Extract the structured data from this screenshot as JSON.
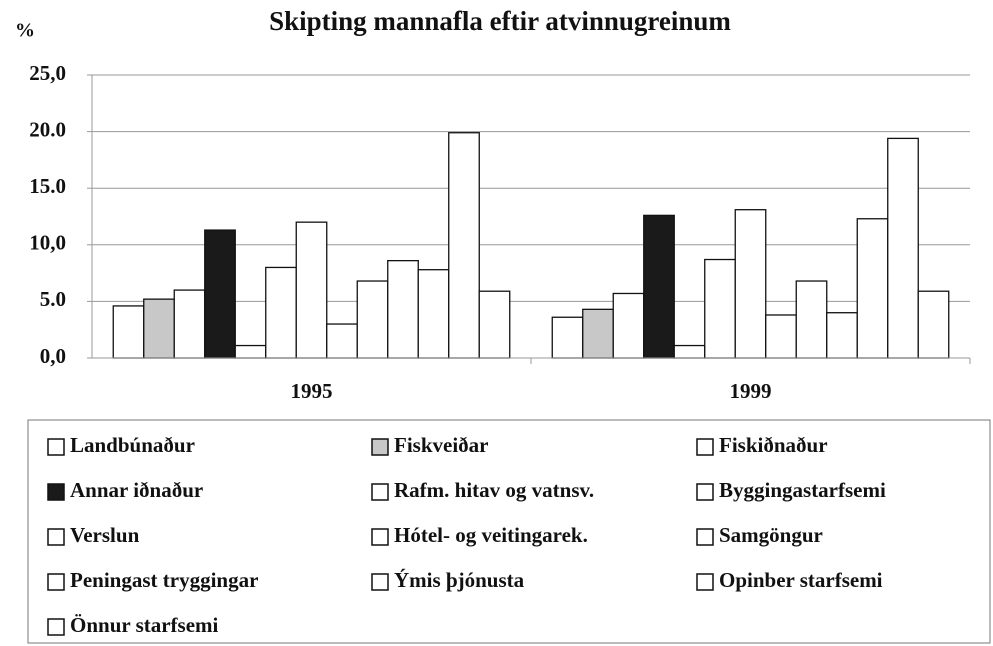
{
  "chart_data": {
    "type": "bar",
    "title": "Skipting mannafla eftir atvinnugreinum",
    "y_label": "%",
    "categories": [
      "1995",
      "1999"
    ],
    "series": [
      {
        "name": "Landbúnaður",
        "color": "#ffffff",
        "values": [
          4.6,
          3.6
        ]
      },
      {
        "name": "Fiskveiðar",
        "color": "#c8c8c8",
        "values": [
          5.2,
          4.3
        ]
      },
      {
        "name": "Fiskiðnaður",
        "color": "#ffffff",
        "values": [
          6.0,
          5.7
        ]
      },
      {
        "name": "Annar iðnaður",
        "color": "#1a1a1a",
        "values": [
          11.3,
          12.6
        ]
      },
      {
        "name": "Rafm. hitav og vatnsv.",
        "color": "#ffffff",
        "values": [
          1.1,
          1.1
        ]
      },
      {
        "name": "Byggingastarfsemi",
        "color": "#ffffff",
        "values": [
          8.0,
          8.7
        ]
      },
      {
        "name": "Verslun",
        "color": "#ffffff",
        "values": [
          12.0,
          13.1
        ]
      },
      {
        "name": "Hótel- og veitingarek.",
        "color": "#ffffff",
        "values": [
          3.0,
          3.8
        ]
      },
      {
        "name": "Samgöngur",
        "color": "#ffffff",
        "values": [
          6.8,
          6.8
        ]
      },
      {
        "name": "Peningast tryggingar",
        "color": "#ffffff",
        "values": [
          8.6,
          4.0
        ]
      },
      {
        "name": "Ýmis þjónusta",
        "color": "#ffffff",
        "values": [
          7.8,
          12.3
        ]
      },
      {
        "name": "Opinber starfsemi",
        "color": "#ffffff",
        "values": [
          19.9,
          19.4
        ]
      },
      {
        "name": "Önnur starfsemi",
        "color": "#ffffff",
        "values": [
          5.9,
          5.9
        ]
      }
    ],
    "ylim": [
      0,
      25
    ],
    "yticks": [
      {
        "value": 0,
        "label": "0,0"
      },
      {
        "value": 5,
        "label": "5.0"
      },
      {
        "value": 10,
        "label": "10,0"
      },
      {
        "value": 15,
        "label": "15.0"
      },
      {
        "value": 20,
        "label": "20.0"
      },
      {
        "value": 25,
        "label": "25,0"
      }
    ],
    "grid": true
  }
}
